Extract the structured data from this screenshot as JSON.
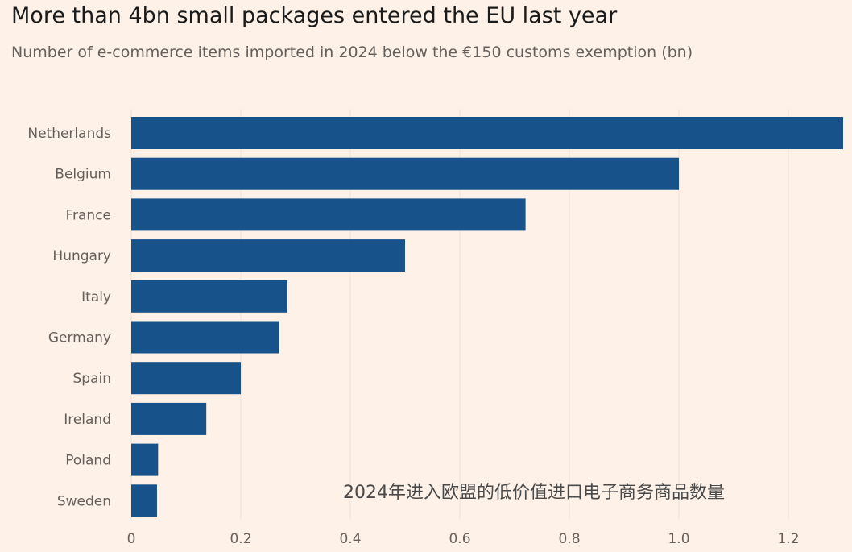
{
  "chart_data": {
    "type": "bar",
    "orientation": "horizontal",
    "title": "More than 4bn small packages entered the EU last year",
    "subtitle": "Number of e-commerce items imported in 2024 below the €150 customs exemption (bn)",
    "categories": [
      "Netherlands",
      "Belgium",
      "France",
      "Hungary",
      "Italy",
      "Germany",
      "Spain",
      "Ireland",
      "Poland",
      "Sweden"
    ],
    "values": [
      1.3,
      1.0,
      0.72,
      0.5,
      0.285,
      0.27,
      0.2,
      0.137,
      0.049,
      0.047
    ],
    "xlim": [
      0,
      1.3
    ],
    "xticks": [
      0,
      0.2,
      0.4,
      0.6,
      0.8,
      1.0,
      1.2
    ],
    "xtick_labels": [
      "0",
      "0.2",
      "0.4",
      "0.6",
      "0.8",
      "1.0",
      "1.2"
    ],
    "grid": "vertical",
    "bar_color": "#17528a",
    "background": "#fdf1e8"
  },
  "caption": "2024年进入欧盟的低价值进口电子商务商品数量"
}
